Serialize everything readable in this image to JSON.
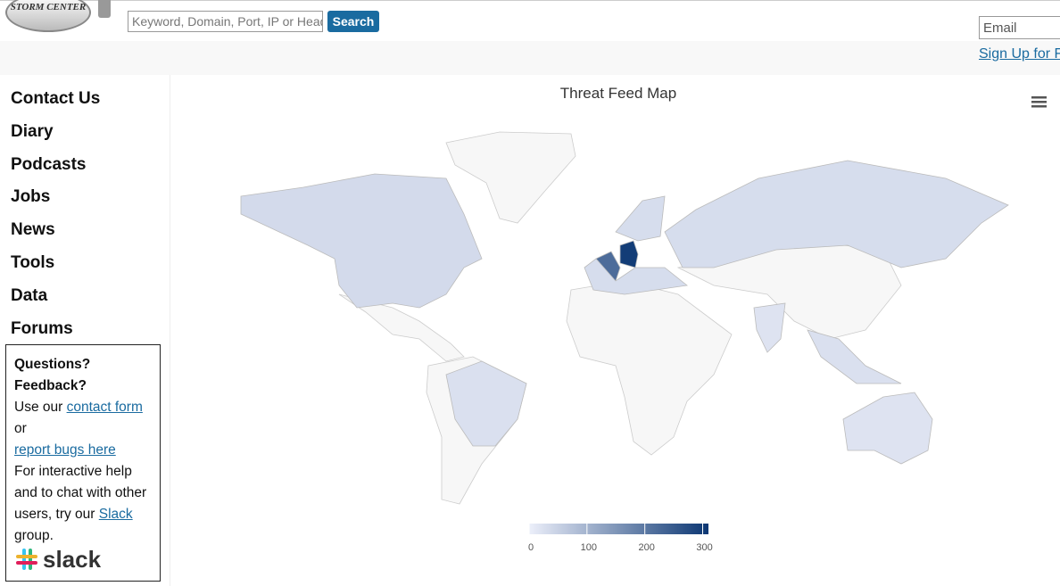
{
  "header": {
    "logo": "STORM CENTER",
    "search_placeholder": "Keyword, Domain, Port, IP or Header",
    "search_button": "Search",
    "email_placeholder": "Email",
    "signup": "Sign Up for Free!"
  },
  "nav": [
    "Contact Us",
    "Diary",
    "Podcasts",
    "Jobs",
    "News",
    "Tools",
    "Data",
    "Forums"
  ],
  "help_box": {
    "heading": "Questions? Feedback?",
    "text1": "Use our ",
    "link1": "contact form",
    "text2": " or",
    "link2": "report bugs here",
    "text3": "For interactive help and to chat with other users, try our ",
    "link3": "Slack",
    "text4": " group.",
    "logo": "slack"
  },
  "chart_data": {
    "type": "choropleth",
    "title": "Threat Feed Map",
    "values": [
      35,
      30,
      25,
      20,
      220,
      300,
      20,
      30,
      30,
      25
    ],
    "colorbar": {
      "range": [
        0,
        310
      ],
      "ticks": [
        0,
        100,
        200,
        300
      ]
    }
  }
}
